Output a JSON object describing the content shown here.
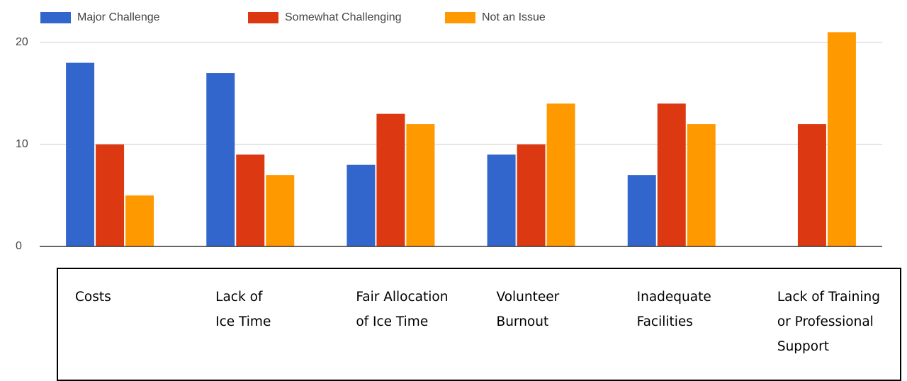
{
  "chart_data": {
    "type": "bar",
    "categories": [
      "Costs",
      "Lack of\nIce Time",
      "Fair Allocation\nof Ice Time",
      "Volunteer\nBurnout",
      "Inadequate\nFacilities",
      "Lack of Training\nor Professional\nSupport"
    ],
    "series": [
      {
        "name": "Major Challenge",
        "color": "#3366cc",
        "values": [
          18,
          17,
          8,
          9,
          7,
          0
        ]
      },
      {
        "name": "Somewhat Challenging",
        "color": "#dc3912",
        "values": [
          10,
          9,
          13,
          10,
          14,
          12
        ]
      },
      {
        "name": "Not an Issue",
        "color": "#ff9900",
        "values": [
          5,
          7,
          12,
          14,
          12,
          21
        ]
      }
    ],
    "ylim": [
      0,
      22
    ],
    "yticks": [
      0,
      10,
      20
    ],
    "grid": true,
    "legend": "top"
  }
}
